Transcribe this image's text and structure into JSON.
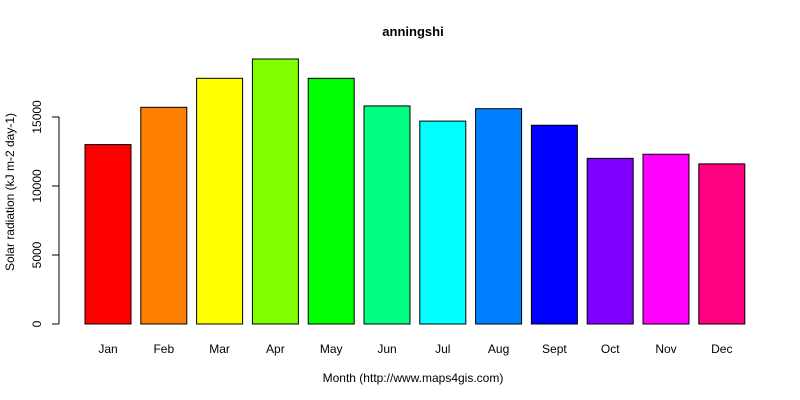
{
  "chart_data": {
    "type": "bar",
    "title": "anningshi",
    "xlabel": "Month (http://www.maps4gis.com)",
    "ylabel": "Solar radiation (kJ m-2 day-1)",
    "categories": [
      "Jan",
      "Feb",
      "Mar",
      "Apr",
      "May",
      "Jun",
      "Jul",
      "Aug",
      "Sept",
      "Oct",
      "Nov",
      "Dec"
    ],
    "values": [
      13000,
      15700,
      17800,
      19200,
      17800,
      15800,
      14700,
      15600,
      14400,
      12000,
      12300,
      11600
    ],
    "colors": [
      "#FF0000",
      "#FF8000",
      "#FFFF00",
      "#80FF00",
      "#00FF00",
      "#00FF80",
      "#00FFFF",
      "#0080FF",
      "#0000FF",
      "#8000FF",
      "#FF00FF",
      "#FF0080"
    ],
    "yticks": [
      0,
      5000,
      10000,
      15000
    ],
    "ylim": [
      0,
      19200
    ],
    "grid": false,
    "legend": "none"
  }
}
